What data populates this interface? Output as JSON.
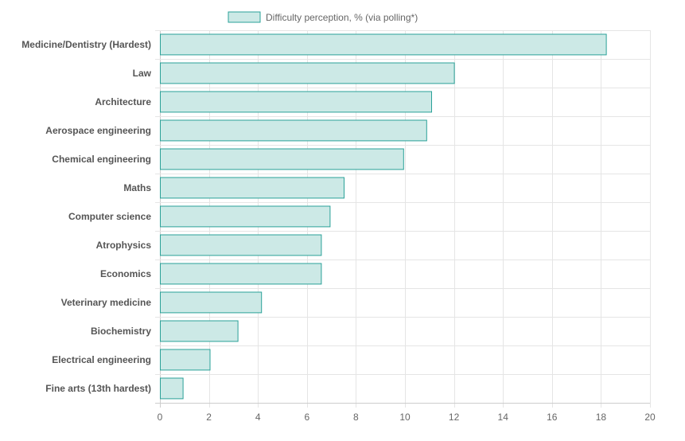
{
  "chart_data": {
    "type": "bar",
    "orientation": "horizontal",
    "categories": [
      "Medicine/Dentistry (Hardest)",
      "Law",
      "Architecture",
      "Aerospace engineering",
      "Chemical engineering",
      "Maths",
      "Computer science",
      "Atrophysics",
      "Economics",
      "Veterinary medicine",
      "Biochemistry",
      "Electrical engineering",
      "Fine arts (13th hardest)"
    ],
    "series": [
      {
        "name": "Difficulty perception, % (via polling*)",
        "values": [
          18.2,
          12.0,
          11.07,
          10.87,
          9.93,
          7.5,
          6.93,
          6.57,
          6.57,
          4.13,
          3.17,
          2.03,
          0.93
        ]
      }
    ],
    "xlim": [
      0,
      20
    ],
    "xticks": [
      "0",
      "2",
      "4",
      "6",
      "8",
      "10",
      "12",
      "14",
      "16",
      "18",
      "20"
    ],
    "grid": true,
    "legend_position": "top",
    "colors": {
      "bar_fill": "#cce9e6",
      "bar_stroke": "#2aa198",
      "grid": "#e5e5e5",
      "axis": "#cccccc"
    }
  }
}
